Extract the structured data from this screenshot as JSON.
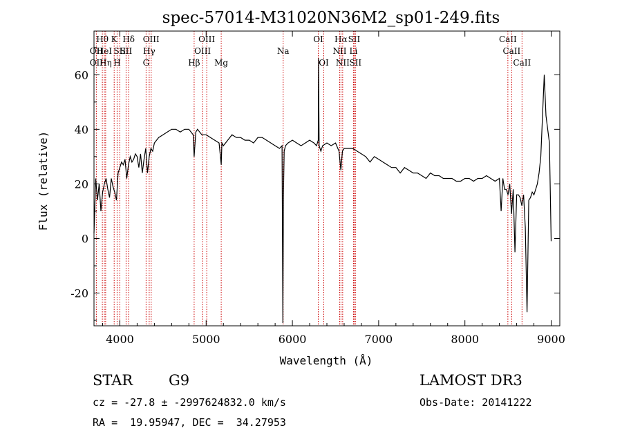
{
  "chart_data": {
    "type": "line",
    "title": "spec-57014-M31020N36M2_sp01-249.fits",
    "xlabel": "Wavelength (Å)",
    "ylabel": "Flux (relative)",
    "xlim": [
      3700,
      9100
    ],
    "ylim": [
      -32,
      76
    ],
    "xticks": [
      4000,
      5000,
      6000,
      7000,
      8000,
      9000
    ],
    "yticks": [
      -20,
      0,
      20,
      40,
      60
    ],
    "grid": false,
    "line_color": "#000000",
    "marker_color": "#cc0000",
    "x": [
      3700,
      3720,
      3740,
      3760,
      3780,
      3800,
      3820,
      3840,
      3860,
      3880,
      3900,
      3920,
      3940,
      3960,
      3980,
      4000,
      4020,
      4040,
      4060,
      4080,
      4100,
      4120,
      4140,
      4160,
      4180,
      4200,
      4220,
      4240,
      4260,
      4280,
      4300,
      4320,
      4340,
      4360,
      4380,
      4400,
      4450,
      4500,
      4550,
      4600,
      4650,
      4700,
      4750,
      4800,
      4850,
      4861,
      4880,
      4900,
      4950,
      5000,
      5050,
      5100,
      5150,
      5175,
      5183,
      5200,
      5250,
      5300,
      5350,
      5400,
      5450,
      5500,
      5550,
      5600,
      5650,
      5700,
      5750,
      5800,
      5850,
      5880,
      5890,
      5896,
      5905,
      5920,
      5950,
      6000,
      6050,
      6100,
      6150,
      6200,
      6250,
      6280,
      6300,
      6303,
      6310,
      6330,
      6350,
      6400,
      6450,
      6500,
      6540,
      6562,
      6580,
      6600,
      6650,
      6700,
      6750,
      6800,
      6850,
      6900,
      6950,
      7000,
      7050,
      7100,
      7150,
      7200,
      7250,
      7300,
      7350,
      7400,
      7450,
      7500,
      7550,
      7600,
      7650,
      7700,
      7750,
      7800,
      7850,
      7900,
      7950,
      8000,
      8050,
      8100,
      8150,
      8200,
      8250,
      8300,
      8350,
      8400,
      8420,
      8440,
      8460,
      8480,
      8500,
      8520,
      8540,
      8560,
      8580,
      8600,
      8620,
      8640,
      8660,
      8680,
      8700,
      8720,
      8740,
      8760,
      8780,
      8800,
      8820,
      8840,
      8860,
      8880,
      8900,
      8920,
      8940,
      8960,
      8980,
      9000
    ],
    "y": [
      2,
      22,
      14,
      20,
      10,
      17,
      20,
      22,
      18,
      15,
      22,
      19,
      17,
      14,
      24,
      26,
      28,
      27,
      29,
      22,
      27,
      30,
      28,
      29,
      31,
      30,
      26,
      31,
      24,
      29,
      33,
      24,
      30,
      33,
      32,
      35,
      37,
      38,
      39,
      40,
      40,
      39,
      40,
      40,
      38,
      30,
      39,
      40,
      38,
      38,
      37,
      36,
      35,
      27,
      35,
      34,
      36,
      38,
      37,
      37,
      36,
      36,
      35,
      37,
      37,
      36,
      35,
      34,
      33,
      34,
      -31,
      15,
      32,
      34,
      35,
      36,
      35,
      34,
      35,
      36,
      35,
      34,
      36,
      66,
      34,
      32,
      34,
      35,
      34,
      35,
      32,
      25,
      32,
      33,
      33,
      33,
      32,
      31,
      30,
      28,
      30,
      29,
      28,
      27,
      26,
      26,
      24,
      26,
      25,
      24,
      24,
      23,
      22,
      24,
      23,
      23,
      22,
      22,
      22,
      21,
      21,
      22,
      22,
      21,
      22,
      22,
      23,
      22,
      21,
      22,
      10,
      22,
      18,
      18,
      16,
      20,
      9,
      18,
      -5,
      16,
      16,
      15,
      12,
      16,
      4,
      -27,
      14,
      15,
      17,
      16,
      18,
      20,
      24,
      30,
      45,
      60,
      45,
      40,
      35,
      -1
    ]
  },
  "line_markers": [
    {
      "name": "Hθ",
      "x": 3797,
      "row": 0,
      "anchor": "middle"
    },
    {
      "name": "OII",
      "x": 3727,
      "row": 1,
      "anchor": "middle"
    },
    {
      "name": "OII",
      "x": 3727,
      "row": 2,
      "anchor": "middle"
    },
    {
      "name": "HeI",
      "x": 3820,
      "row": 1,
      "anchor": "middle"
    },
    {
      "name": "Hη",
      "x": 3835,
      "row": 2,
      "anchor": "middle"
    },
    {
      "name": "K",
      "x": 3934,
      "row": 0,
      "anchor": "middle"
    },
    {
      "name": "SII",
      "x": 3999,
      "row": 1,
      "anchor": "middle"
    },
    {
      "name": "H",
      "x": 3968,
      "row": 2,
      "anchor": "middle"
    },
    {
      "name": "Hδ",
      "x": 4102,
      "row": 0,
      "anchor": "middle"
    },
    {
      "name": "SII",
      "x": 4072,
      "row": 1,
      "anchor": "middle"
    },
    {
      "name": "OIII",
      "x": 4363,
      "row": 0,
      "anchor": "middle"
    },
    {
      "name": "Hγ",
      "x": 4340,
      "row": 1,
      "anchor": "middle"
    },
    {
      "name": "G",
      "x": 4304,
      "row": 2,
      "anchor": "middle"
    },
    {
      "name": "OIII",
      "x": 5007,
      "row": 0,
      "anchor": "middle"
    },
    {
      "name": "OIII",
      "x": 4959,
      "row": 1,
      "anchor": "middle"
    },
    {
      "name": "Hβ",
      "x": 4861,
      "row": 2,
      "anchor": "middle"
    },
    {
      "name": "Mg",
      "x": 5175,
      "row": 2,
      "anchor": "middle"
    },
    {
      "name": "Na",
      "x": 5893,
      "row": 1,
      "anchor": "middle"
    },
    {
      "name": "OI",
      "x": 6300,
      "row": 0,
      "anchor": "middle"
    },
    {
      "name": "OI",
      "x": 6364,
      "row": 2,
      "anchor": "middle"
    },
    {
      "name": "Hα",
      "x": 6563,
      "row": 0,
      "anchor": "middle"
    },
    {
      "name": "NII",
      "x": 6548,
      "row": 1,
      "anchor": "middle"
    },
    {
      "name": "NII",
      "x": 6583,
      "row": 2,
      "anchor": "middle"
    },
    {
      "name": "SII",
      "x": 6716,
      "row": 0,
      "anchor": "middle"
    },
    {
      "name": "Li",
      "x": 6708,
      "row": 1,
      "anchor": "middle"
    },
    {
      "name": "SII",
      "x": 6731,
      "row": 2,
      "anchor": "middle"
    },
    {
      "name": "CaII",
      "x": 8498,
      "row": 0,
      "anchor": "middle"
    },
    {
      "name": "CaII",
      "x": 8542,
      "row": 1,
      "anchor": "middle"
    },
    {
      "name": "CaII",
      "x": 8662,
      "row": 2,
      "anchor": "middle"
    }
  ],
  "info": {
    "object_class": "STAR",
    "subclass": "G9",
    "survey": "LAMOST DR3",
    "cz": "cz = -27.8 ± -2997624832.0 km/s",
    "obs_date": "Obs-Date: 20141222",
    "coords": "RA =  19.95947, DEC =  34.27953"
  }
}
